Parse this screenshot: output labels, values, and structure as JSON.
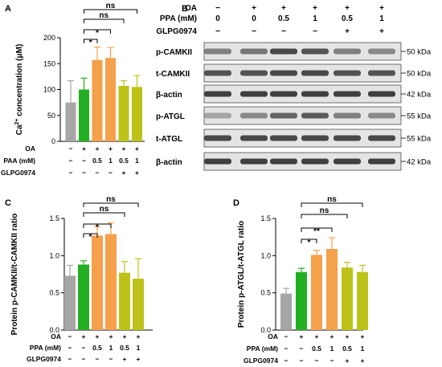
{
  "colors": {
    "gray": "#a6a6a6",
    "green": "#22b022",
    "orange": "#f5a04a",
    "olive": "#bcc217",
    "blot_bg": "#e4e4e4",
    "band": "#2e2e2e"
  },
  "panel_letters": [
    "A",
    "B",
    "C",
    "D"
  ],
  "chart_data": [
    {
      "type": "bar",
      "panel": "A",
      "ylabel_main": "Ca",
      "ylabel_sup": "2+",
      "ylabel_rest": " concentration (μM)",
      "ylim": [
        0,
        200
      ],
      "yticks": [
        "0",
        "50",
        "100",
        "150",
        "200"
      ],
      "values": [
        75,
        100,
        157,
        161,
        107,
        105
      ],
      "errors": [
        42,
        22,
        25,
        20,
        10,
        22
      ],
      "bar_colors": [
        "gray",
        "green",
        "orange",
        "orange",
        "olive",
        "olive"
      ],
      "conditions": [
        {
          "label": "OA",
          "values": [
            "−",
            "+",
            "+",
            "+",
            "+",
            "+"
          ]
        },
        {
          "label": "PAA (mM)",
          "values": [
            "−",
            "−",
            "0.5",
            "1",
            "0.5",
            "1"
          ]
        },
        {
          "label": "GLPG0974",
          "values": [
            "−",
            "−",
            "−",
            "−",
            "+",
            "+"
          ]
        }
      ],
      "comparisons": [
        {
          "from": 1,
          "to": 5,
          "label": "ns"
        },
        {
          "from": 1,
          "to": 4,
          "label": "ns"
        },
        {
          "from": 1,
          "to": 3,
          "label": "*"
        },
        {
          "from": 1,
          "to": 2,
          "label": "*"
        }
      ]
    },
    {
      "type": "bar",
      "panel": "C",
      "ylabel_main": "Protein p-CAMKII/t-CAMKII ratio",
      "ylim": [
        0.0,
        1.5
      ],
      "yticks": [
        "0.0",
        "0.5",
        "1.0",
        "1.5"
      ],
      "values": [
        0.73,
        0.88,
        1.27,
        1.29,
        0.77,
        0.69
      ],
      "errors": [
        0.14,
        0.05,
        0.12,
        0.15,
        0.15,
        0.27
      ],
      "bar_colors": [
        "gray",
        "green",
        "orange",
        "orange",
        "olive",
        "olive"
      ],
      "conditions": [
        {
          "label": "OA",
          "values": [
            "−",
            "+",
            "+",
            "+",
            "+",
            "+"
          ]
        },
        {
          "label": "PPA (mM)",
          "values": [
            "−",
            "−",
            "0.5",
            "1",
            "0.5",
            "1"
          ]
        },
        {
          "label": "GLPG0974",
          "values": [
            "−",
            "−",
            "−",
            "−",
            "+",
            "+"
          ]
        }
      ],
      "comparisons": [
        {
          "from": 1,
          "to": 5,
          "label": "ns"
        },
        {
          "from": 1,
          "to": 4,
          "label": "ns"
        },
        {
          "from": 1,
          "to": 3,
          "label": "*"
        },
        {
          "from": 1,
          "to": 2,
          "label": "*"
        }
      ]
    },
    {
      "type": "bar",
      "panel": "D",
      "ylabel_main": "Protein p-ATGL/t-ATGL ratio",
      "ylim": [
        0.0,
        1.5
      ],
      "yticks": [
        "0.0",
        "0.5",
        "1.0",
        "1.5"
      ],
      "values": [
        0.49,
        0.78,
        1.01,
        1.09,
        0.84,
        0.78
      ],
      "errors": [
        0.07,
        0.05,
        0.06,
        0.15,
        0.07,
        0.09
      ],
      "bar_colors": [
        "gray",
        "green",
        "orange",
        "orange",
        "olive",
        "olive"
      ],
      "conditions": [
        {
          "label": "OA",
          "values": [
            "−",
            "+",
            "+",
            "+",
            "+",
            "+"
          ]
        },
        {
          "label": "PPA (mM)",
          "values": [
            "−",
            "−",
            "0.5",
            "1",
            "0.5",
            "1"
          ]
        },
        {
          "label": "GLPG0974",
          "values": [
            "−",
            "−",
            "−",
            "−",
            "+",
            "+"
          ]
        }
      ],
      "comparisons": [
        {
          "from": 1,
          "to": 5,
          "label": "ns"
        },
        {
          "from": 1,
          "to": 4,
          "label": "ns"
        },
        {
          "from": 1,
          "to": 3,
          "label": "**"
        },
        {
          "from": 1,
          "to": 2,
          "label": "*"
        }
      ]
    }
  ],
  "western_blot": {
    "conditions": [
      {
        "label": "OA",
        "values": [
          "−",
          "+",
          "+",
          "+",
          "+",
          "+"
        ]
      },
      {
        "label": "PPA (mM)",
        "values": [
          "0",
          "0",
          "0.5",
          "1",
          "0.5",
          "1"
        ]
      },
      {
        "label": "GLPG0974",
        "values": [
          "−",
          "−",
          "−",
          "−",
          "+",
          "+"
        ]
      }
    ],
    "blots": [
      {
        "label": "p-CAMKII",
        "kda": "50 kDa",
        "intensity": [
          0.55,
          0.6,
          0.85,
          0.8,
          0.55,
          0.5
        ]
      },
      {
        "label": "t-CAMKII",
        "kda": "50 kDa",
        "intensity": [
          0.8,
          0.8,
          0.85,
          0.85,
          0.8,
          0.8
        ]
      },
      {
        "label": "β-actin",
        "kda": "42 kDa",
        "intensity": [
          0.9,
          0.9,
          0.9,
          0.9,
          0.9,
          0.9
        ]
      },
      {
        "label": "p-ATGL",
        "kda": "55 kDa",
        "intensity": [
          0.35,
          0.5,
          0.7,
          0.75,
          0.55,
          0.5
        ]
      },
      {
        "label": "t-ATGL",
        "kda": "55 kDa",
        "intensity": [
          0.85,
          0.85,
          0.85,
          0.85,
          0.85,
          0.85
        ]
      },
      {
        "label": "β-actin",
        "kda": "42 kDa",
        "intensity": [
          0.9,
          0.9,
          0.9,
          0.9,
          0.9,
          0.9
        ]
      }
    ]
  }
}
